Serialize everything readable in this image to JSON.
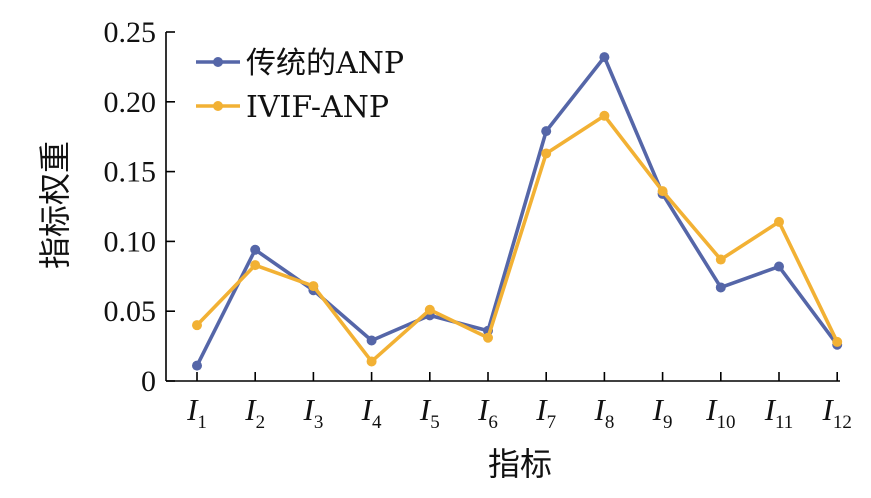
{
  "chart_data": {
    "type": "line",
    "ylabel": "指标权重",
    "xlabel": "指标",
    "categories": [
      {
        "main": "I",
        "sub": "1"
      },
      {
        "main": "I",
        "sub": "2"
      },
      {
        "main": "I",
        "sub": "3"
      },
      {
        "main": "I",
        "sub": "4"
      },
      {
        "main": "I",
        "sub": "5"
      },
      {
        "main": "I",
        "sub": "6"
      },
      {
        "main": "I",
        "sub": "7"
      },
      {
        "main": "I",
        "sub": "8"
      },
      {
        "main": "I",
        "sub": "9"
      },
      {
        "main": "I",
        "sub": "10"
      },
      {
        "main": "I",
        "sub": "11"
      },
      {
        "main": "I",
        "sub": "12"
      }
    ],
    "ylim": [
      0,
      0.25
    ],
    "yticks": [
      "0",
      "0.05",
      "0.10",
      "0.15",
      "0.20",
      "0.25"
    ],
    "ytick_values": [
      0,
      0.05,
      0.1,
      0.15,
      0.2,
      0.25
    ],
    "grid": false,
    "legend_position": "top-left",
    "series": [
      {
        "name": "传统的ANP",
        "color": "#5566a8",
        "values": [
          0.011,
          0.094,
          0.065,
          0.029,
          0.047,
          0.036,
          0.179,
          0.232,
          0.134,
          0.067,
          0.082,
          0.026
        ]
      },
      {
        "name": "IVIF-ANP",
        "color": "#f2b134",
        "values": [
          0.04,
          0.083,
          0.068,
          0.014,
          0.051,
          0.031,
          0.163,
          0.19,
          0.136,
          0.087,
          0.114,
          0.028
        ]
      }
    ]
  }
}
